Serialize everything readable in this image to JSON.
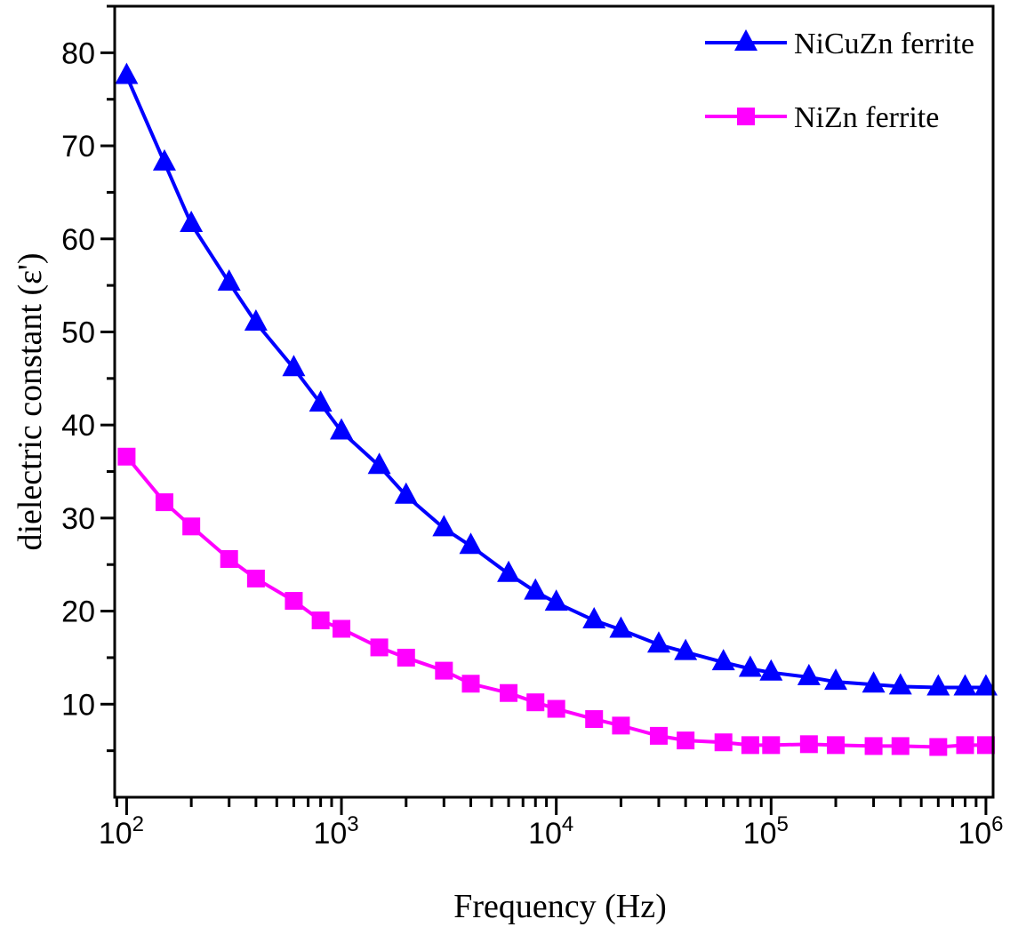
{
  "chart_data": {
    "type": "line",
    "title": "",
    "xlabel": "Frequency (Hz)",
    "ylabel": "dielectric constant (ε')",
    "xscale": "log",
    "xlim": [
      88,
      1080000
    ],
    "ylim": [
      0,
      85
    ],
    "x_ticks": [
      100,
      1000,
      10000,
      100000,
      1000000
    ],
    "x_tick_labels": [
      {
        "base": "10",
        "exp": "2"
      },
      {
        "base": "10",
        "exp": "3"
      },
      {
        "base": "10",
        "exp": "4"
      },
      {
        "base": "10",
        "exp": "5"
      },
      {
        "base": "10",
        "exp": "6"
      }
    ],
    "y_ticks": [
      10,
      20,
      30,
      40,
      50,
      60,
      70,
      80
    ],
    "y_tick_labels": [
      "10",
      "20",
      "30",
      "40",
      "50",
      "60",
      "70",
      "80"
    ],
    "grid": false,
    "legend_position": "top-right",
    "x": [
      100,
      150,
      200,
      300,
      400,
      600,
      800,
      1000,
      1500,
      2000,
      3000,
      4000,
      6000,
      8000,
      10000,
      15000,
      20000,
      30000,
      40000,
      60000,
      80000,
      100000,
      150000,
      200000,
      300000,
      400000,
      600000,
      800000,
      1000000
    ],
    "series": [
      {
        "name": "NiCuZn ferrite",
        "color": "#0000ff",
        "marker": "triangle",
        "values": [
          77.5,
          68.2,
          61.6,
          55.3,
          51.0,
          46.1,
          42.3,
          39.3,
          35.6,
          32.4,
          28.9,
          27.0,
          24.0,
          22.1,
          20.9,
          19.0,
          18.0,
          16.4,
          15.6,
          14.5,
          13.8,
          13.4,
          12.9,
          12.4,
          12.1,
          11.9,
          11.8,
          11.8,
          11.8
        ]
      },
      {
        "name": "NiZn ferrite",
        "color": "#ff00ff",
        "marker": "square",
        "values": [
          36.6,
          31.7,
          29.1,
          25.6,
          23.5,
          21.1,
          19.0,
          18.1,
          16.1,
          15.0,
          13.6,
          12.2,
          11.2,
          10.2,
          9.5,
          8.4,
          7.7,
          6.6,
          6.1,
          5.9,
          5.6,
          5.6,
          5.7,
          5.6,
          5.5,
          5.5,
          5.4,
          5.6,
          5.6
        ]
      }
    ]
  }
}
